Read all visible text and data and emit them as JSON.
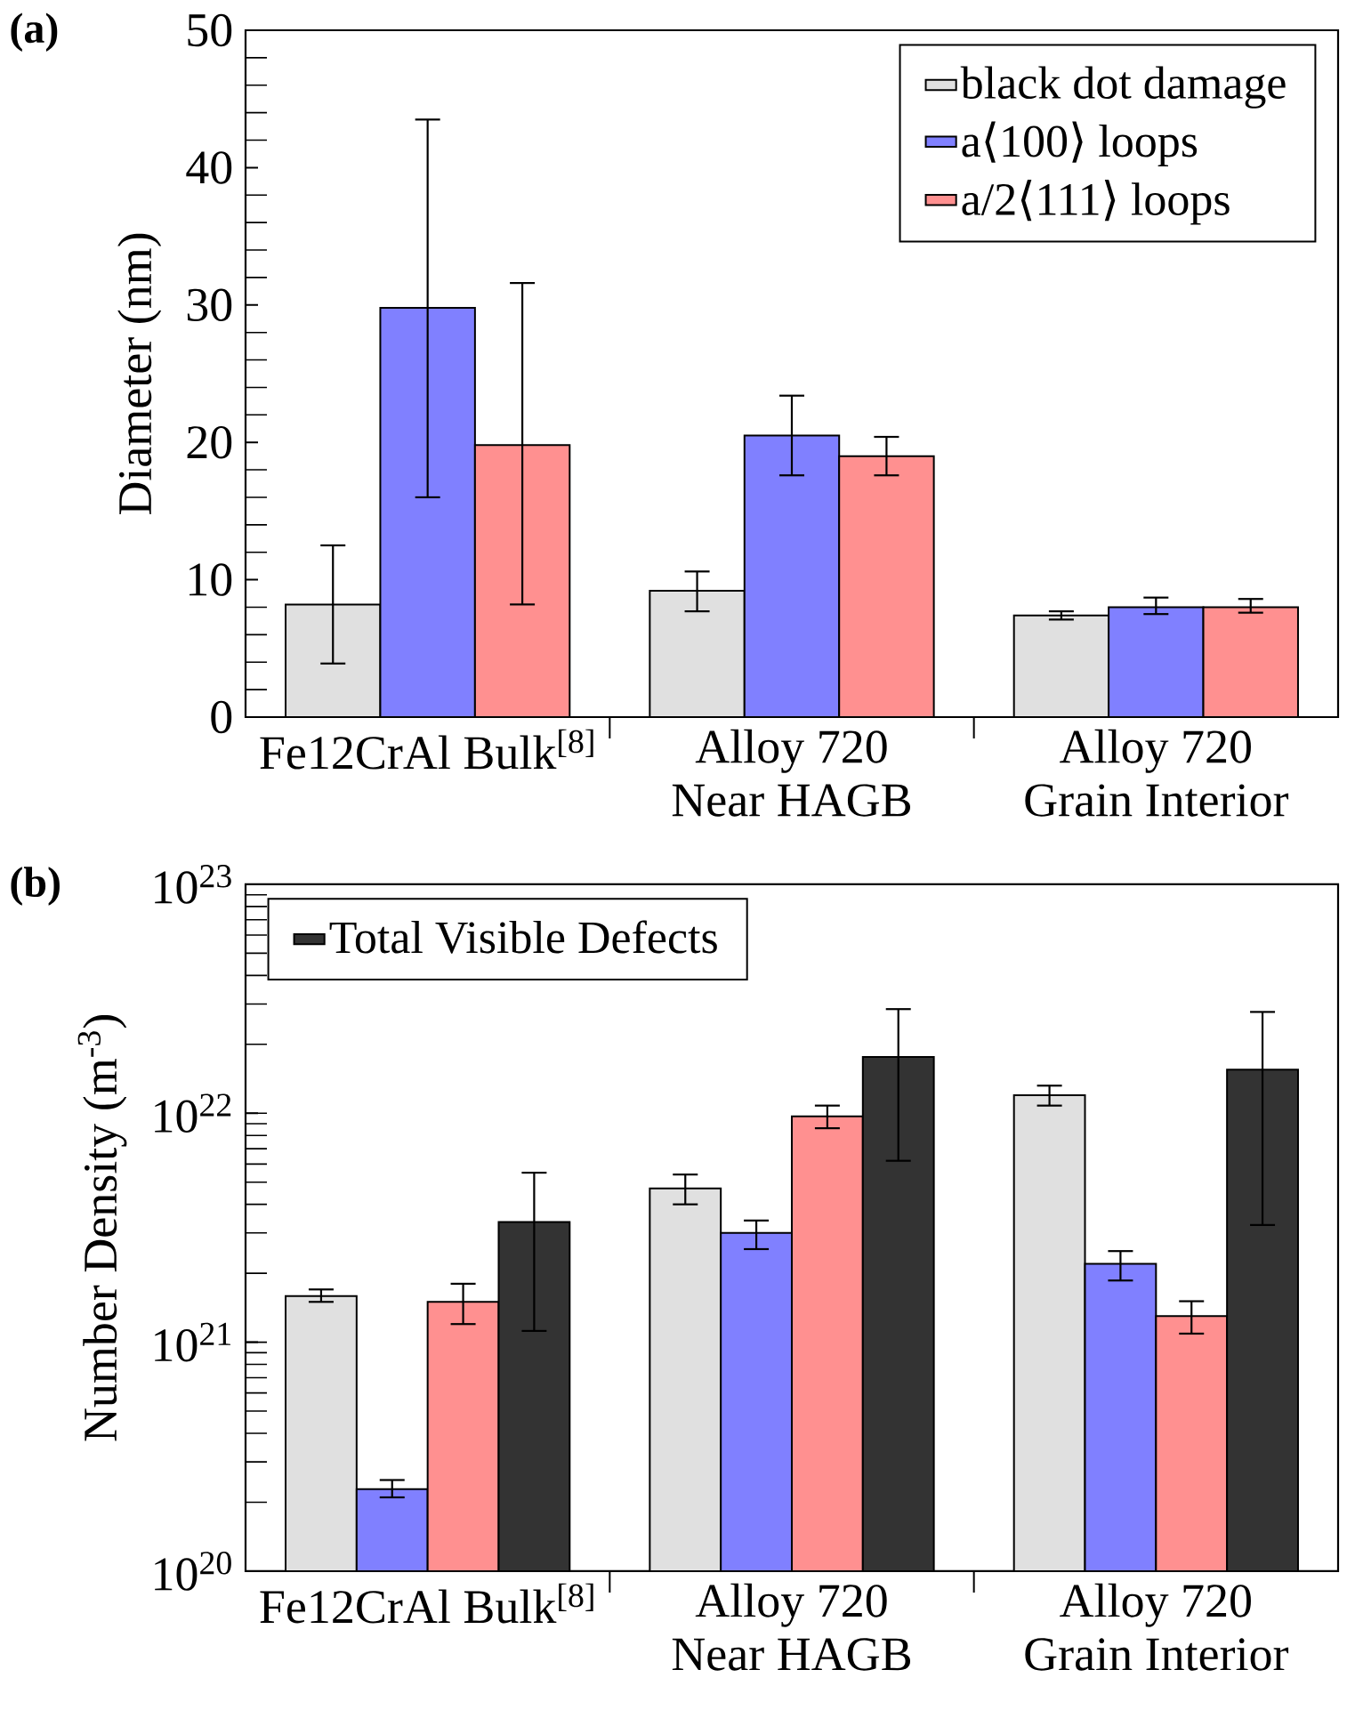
{
  "chart_data": [
    {
      "type": "bar",
      "annotations": [
        "(a)"
      ],
      "ylabel": "Diameter (nm)",
      "categories": [
        "Fe12CrAl Bulk$^{[8]}$",
        "Alloy 720 Near HAGB",
        "Alloy 720 Grain Interior"
      ],
      "ylim": [
        0,
        50
      ],
      "yticks": [
        0,
        10,
        20,
        30,
        40,
        50
      ],
      "legend": "top right",
      "series": [
        {
          "name": "black dot damage",
          "color": "#e0e0e0",
          "values": [
            8.2,
            9.2,
            7.4
          ],
          "errors": [
            [
              3.9,
              12.5
            ],
            [
              7.7,
              10.6
            ],
            [
              7.1,
              7.7
            ]
          ]
        },
        {
          "name": "a⟨100⟩ loops",
          "color": "#8080ff",
          "values": [
            29.8,
            20.5,
            8.0
          ],
          "errors": [
            [
              16,
              43.5
            ],
            [
              17.6,
              23.4
            ],
            [
              7.5,
              8.7
            ]
          ]
        },
        {
          "name": "a/2⟨111⟩  loops",
          "color": "#ff9090",
          "values": [
            19.8,
            19.0,
            8.0
          ],
          "errors": [
            [
              8.2,
              31.6
            ],
            [
              17.6,
              20.4
            ],
            [
              7.6,
              8.6
            ]
          ]
        }
      ]
    },
    {
      "type": "bar",
      "annotations": [
        "(b)"
      ],
      "ylabel": "Number Density (m$^{-3}$)",
      "categories": [
        "Fe12CrAl Bulk$^{[8]}$",
        "Alloy 720 Near HAGB",
        "Alloy 720 Grain Interior"
      ],
      "log": true,
      "ylim": [
        1e+20,
        1e+23
      ],
      "yticks": [
        {
          "value": 1e+20,
          "label": "10$^{20}$"
        },
        {
          "value": 1e+21,
          "label": "10$^{21}$"
        },
        {
          "value": 1e+22,
          "label": "10$^{22}$"
        },
        {
          "value": 1e+23,
          "label": "10$^{23}$"
        }
      ],
      "legend": "top left",
      "series": [
        {
          "color": "#e0e0e0",
          "values": [
            1.59e+21,
            4.7e+21,
            1.2e+22
          ],
          "errors": [
            [
              1.5e+21,
              1.7e+21
            ],
            [
              4e+21,
              5.4e+21
            ],
            [
              1.08e+22,
              1.32e+22
            ]
          ]
        },
        {
          "color": "#8080ff",
          "values": [
            2.28e+20,
            3e+21,
            2.2e+21
          ],
          "errors": [
            [
              2.1e+20,
              2.5e+20
            ],
            [
              2.55e+21,
              3.4e+21
            ],
            [
              1.86e+21,
              2.5e+21
            ]
          ]
        },
        {
          "color": "#ff9090",
          "values": [
            1.5e+21,
            9.7e+21,
            1.3e+21
          ],
          "errors": [
            [
              1.2e+21,
              1.8e+21
            ],
            [
              8.6e+21,
              1.08e+22
            ],
            [
              1.09e+21,
              1.51e+21
            ]
          ]
        },
        {
          "name": "Total Visible Defects",
          "color": "#333333",
          "values": [
            3.35e+21,
            1.76e+22,
            1.55e+22
          ],
          "errors": [
            [
              1.12e+21,
              5.5e+21
            ],
            [
              6.2e+21,
              2.85e+22
            ],
            [
              3.25e+21,
              2.77e+22
            ]
          ]
        }
      ]
    }
  ]
}
